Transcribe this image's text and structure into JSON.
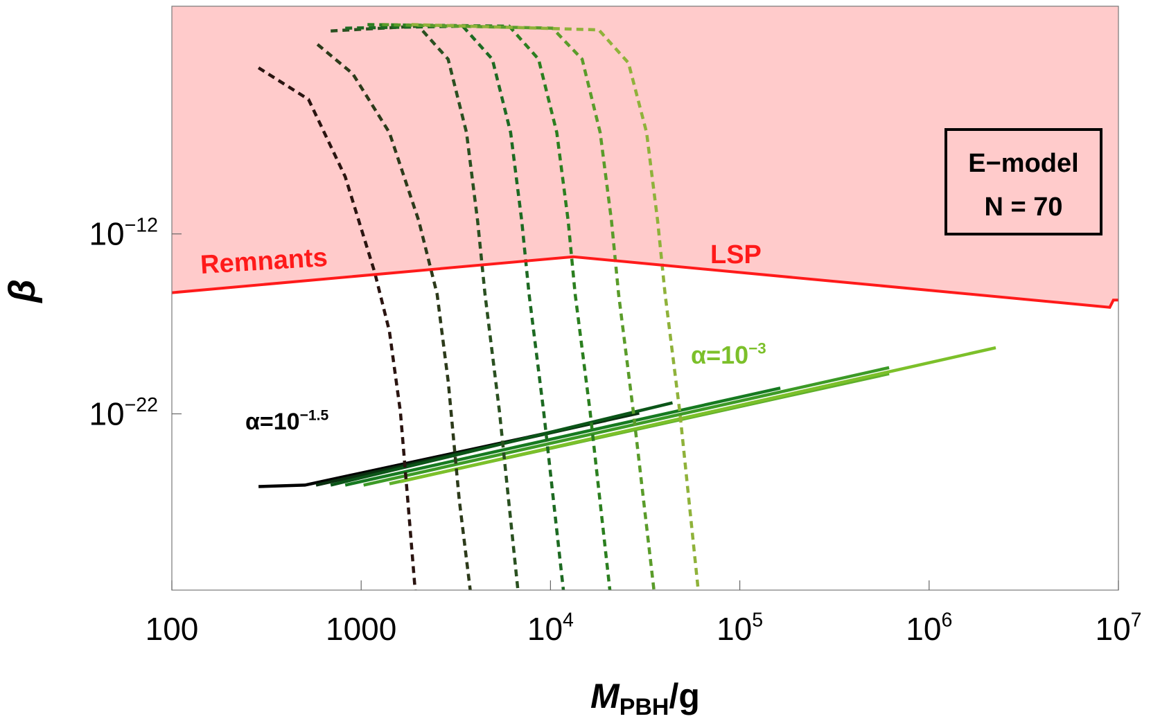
{
  "chart_data": {
    "type": "line",
    "x_label": {
      "main": "M",
      "sub": "PBH",
      "rest": "/g"
    },
    "y_label": "β",
    "log_x": true,
    "log_y": true,
    "xlim": [
      100,
      10000000
    ],
    "ylim": [
      1.6e-32,
      4.5
    ],
    "xticks": [
      100,
      1000,
      {
        "value": 10000,
        "label": "10",
        "exponent": "4"
      },
      {
        "value": 100000,
        "label": "10",
        "exponent": "5"
      },
      {
        "value": 1000000,
        "label": "10",
        "exponent": "6"
      },
      {
        "value": 10000000,
        "label": "10",
        "exponent": "7"
      }
    ],
    "yticks": [
      {
        "value": 1e-22,
        "label": "10",
        "exponent": "−22"
      },
      {
        "value": 1e-12,
        "label": "10",
        "exponent": "−12"
      }
    ],
    "constraint": {
      "color": "#ff1a1a",
      "region_color": "#ffcbcb",
      "x": [
        100,
        13200,
        9000000,
        9400000,
        10000000
      ],
      "values": [
        5.4e-16,
        5.4e-14,
        8.3e-17,
        2.1e-16,
        2.1e-16
      ]
    },
    "dashed_series": [
      {
        "color": "#2a1410",
        "x": [
          287,
          527,
          824,
          1178,
          1409,
          1611,
          1762,
          1928
        ],
        "values": [
          0.0017,
          3e-05,
          1.5e-09,
          7.6e-15,
          4e-18,
          1.3e-22,
          1.7e-27,
          1.6e-32
        ]
      },
      {
        "color": "#2c3a1a",
        "x": [
          588,
          902,
          1409,
          2014,
          2518,
          2884,
          3296,
          3767
        ],
        "values": [
          0.034,
          0.0008,
          4.3e-07,
          5.4e-12,
          4.5e-16,
          5.8e-21,
          1.7e-27,
          1.6e-32
        ]
      },
      {
        "color": "#2a5020",
        "x": [
          690,
          2010,
          2880,
          3600,
          4120,
          4510,
          5380,
          6730
        ],
        "values": [
          0.19,
          0.35,
          0.0051,
          4.3e-07,
          5.4e-12,
          4.5e-16,
          1.3e-22,
          1.6e-32
        ]
      },
      {
        "color": "#1d6a22",
        "x": [
          824,
          3440,
          4930,
          6160,
          7050,
          7710,
          9210,
          11700
        ],
        "values": [
          0.27,
          0.35,
          0.0051,
          4.3e-07,
          5.4e-12,
          4.5e-16,
          1.3e-22,
          1.6e-32
        ]
      },
      {
        "color": "#2b7f1f",
        "x": [
          1080,
          6050,
          8650,
          10800,
          12400,
          13500,
          16200,
          20600
        ],
        "values": [
          0.43,
          0.35,
          0.0051,
          4.3e-07,
          5.4e-12,
          4.5e-16,
          1.3e-22,
          1.6e-32
        ]
      },
      {
        "color": "#5a9c2a",
        "x": [
          1290,
          10250,
          14700,
          18300,
          21000,
          22900,
          27400,
          35200
        ],
        "values": [
          0.43,
          0.27,
          0.0051,
          4.3e-07,
          5.4e-12,
          4.5e-16,
          1.3e-22,
          1.6e-32
        ]
      },
      {
        "color": "#8fb23a",
        "x": [
          1845,
          18000,
          25800,
          32200,
          36800,
          40300,
          48200,
          60300
        ],
        "values": [
          0.43,
          0.22,
          0.0032,
          4.3e-07,
          5.4e-12,
          4.5e-16,
          1.3e-22,
          1.6e-32
        ]
      }
    ],
    "series": [
      {
        "color": "#000000",
        "x": [
          287,
          505,
          19700
        ],
        "values": [
          9.1e-27,
          1.1e-26,
          4.3e-23
        ]
      },
      {
        "color": "#0a3010",
        "x": [
          577,
          29400
        ],
        "values": [
          1.1e-26,
          1.1e-22
        ]
      },
      {
        "color": "#0b5518",
        "x": [
          690,
          44100
        ],
        "values": [
          1.1e-26,
          4.1e-22
        ]
      },
      {
        "color": "#167a20",
        "x": [
          824,
          163700
        ],
        "values": [
          1.1e-26,
          2.7e-21
        ]
      },
      {
        "color": "#3c9a26",
        "x": [
          1030,
          615000
        ],
        "values": [
          1.1e-26,
          3.7e-20
        ]
      },
      {
        "color": "#5fb02c",
        "x": [
          1410,
          615000
        ],
        "values": [
          1.3e-26,
          1.7e-20
        ]
      },
      {
        "color": "#7cc02a",
        "x": [
          1610,
          2250000
        ],
        "values": [
          1.7e-26,
          4.7e-19
        ]
      }
    ],
    "annotations": [
      {
        "text": "Remnants",
        "color": "#ff1a1a"
      },
      {
        "text": "LSP",
        "color": "#ff1a1a"
      },
      {
        "text": "α=10",
        "sup": "−1.5",
        "color": "#000000"
      },
      {
        "text": "α=10",
        "sup": "−3",
        "color": "#7cc02a"
      }
    ],
    "legend_box": [
      "E−model",
      "N = 70"
    ]
  }
}
